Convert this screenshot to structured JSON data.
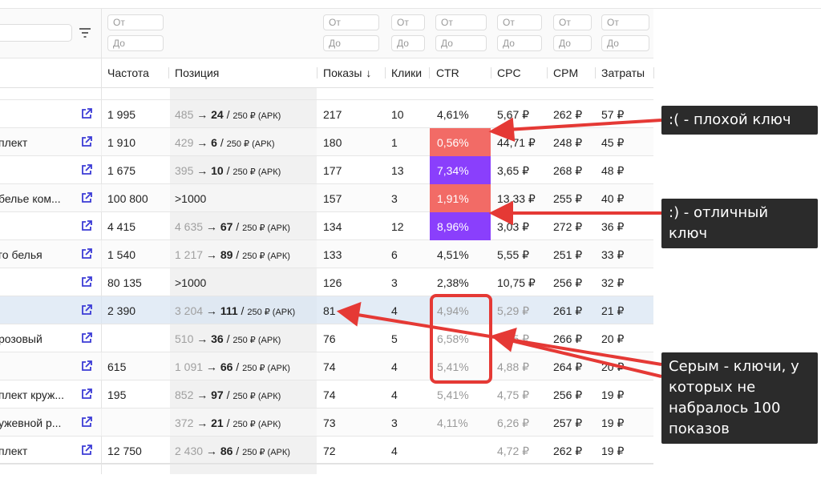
{
  "filters": {
    "from_placeholder": "От",
    "to_placeholder": "До"
  },
  "columns": [
    "Частота",
    "Позиция",
    "Показы",
    "Клики",
    "CTR",
    "CPC",
    "CPM",
    "Затраты"
  ],
  "sort_indicator": "↓",
  "colors": {
    "bad": "#f26b66",
    "good": "#8a3ffc",
    "link": "#3b3bd6",
    "annotation_red": "#e53935"
  },
  "rows": [
    {
      "kw": "",
      "freq": "1 995",
      "pos_old": "485",
      "pos_new": "24",
      "pos_bid": "250 ₽ (АРК)",
      "shows": "217",
      "clicks": "10",
      "ctr": "4,61%",
      "cpc": "5,67 ₽",
      "cpm": "262 ₽",
      "cost": "57 ₽",
      "ctr_flag": "",
      "gray": false
    },
    {
      "kw": "плект",
      "freq": "1 910",
      "pos_old": "429",
      "pos_new": "6",
      "pos_bid": "250 ₽ (АРК)",
      "shows": "180",
      "clicks": "1",
      "ctr": "0,56%",
      "cpc": "44,71 ₽",
      "cpm": "248 ₽",
      "cost": "45 ₽",
      "ctr_flag": "bad",
      "gray": false
    },
    {
      "kw": "",
      "freq": "1 675",
      "pos_old": "395",
      "pos_new": "10",
      "pos_bid": "250 ₽ (АРК)",
      "shows": "177",
      "clicks": "13",
      "ctr": "7,34%",
      "cpc": "3,65 ₽",
      "cpm": "268 ₽",
      "cost": "48 ₽",
      "ctr_flag": "good",
      "gray": false
    },
    {
      "kw": " белье ком...",
      "freq": "100 800",
      "pos_text": ">1000",
      "shows": "157",
      "clicks": "3",
      "ctr": "1,91%",
      "cpc": "13,33 ₽",
      "cpm": "255 ₽",
      "cost": "40 ₽",
      "ctr_flag": "bad",
      "gray": false
    },
    {
      "kw": "",
      "freq": "4 415",
      "pos_old": "4 635",
      "pos_new": "67",
      "pos_bid": "250 ₽ (АРК)",
      "shows": "134",
      "clicks": "12",
      "ctr": "8,96%",
      "cpc": "3,03 ₽",
      "cpm": "272 ₽",
      "cost": "36 ₽",
      "ctr_flag": "good",
      "gray": false
    },
    {
      "kw": "го белья",
      "freq": "1 540",
      "pos_old": "1 217",
      "pos_new": "89",
      "pos_bid": "250 ₽ (АРК)",
      "shows": "133",
      "clicks": "6",
      "ctr": "4,51%",
      "cpc": "5,55 ₽",
      "cpm": "251 ₽",
      "cost": "33 ₽",
      "ctr_flag": "",
      "gray": false
    },
    {
      "kw": "",
      "freq": "80 135",
      "pos_text": ">1000",
      "shows": "126",
      "clicks": "3",
      "ctr": "2,38%",
      "cpc": "10,75 ₽",
      "cpm": "256 ₽",
      "cost": "32 ₽",
      "ctr_flag": "",
      "gray": false
    },
    {
      "kw": "",
      "freq": "2 390",
      "pos_old": "3 204",
      "pos_new": "111",
      "pos_bid": "250 ₽ (АРК)",
      "shows": "81",
      "clicks": "4",
      "ctr": "4,94%",
      "cpc": "5,29 ₽",
      "cpm": "261 ₽",
      "cost": "21 ₽",
      "ctr_flag": "",
      "gray": true,
      "selected": true
    },
    {
      "kw": "розовый",
      "freq": "",
      "pos_old": "510",
      "pos_new": "36",
      "pos_bid": "250 ₽ (АРК)",
      "shows": "76",
      "clicks": "5",
      "ctr": "6,58%",
      "cpc": "4,05 ₽",
      "cpm": "266 ₽",
      "cost": "20 ₽",
      "ctr_flag": "",
      "gray": true
    },
    {
      "kw": "",
      "freq": "615",
      "pos_old": "1 091",
      "pos_new": "66",
      "pos_bid": "250 ₽ (АРК)",
      "shows": "74",
      "clicks": "4",
      "ctr": "5,41%",
      "cpc": "4,88 ₽",
      "cpm": "264 ₽",
      "cost": "20 ₽",
      "ctr_flag": "",
      "gray": true
    },
    {
      "kw": "плект круж...",
      "freq": "195",
      "pos_old": "852",
      "pos_new": "97",
      "pos_bid": "250 ₽ (АРК)",
      "shows": "74",
      "clicks": "4",
      "ctr": "5,41%",
      "cpc": "4,75 ₽",
      "cpm": "256 ₽",
      "cost": "19 ₽",
      "ctr_flag": "",
      "gray": true
    },
    {
      "kw": "ужевной р...",
      "freq": "",
      "pos_old": "372",
      "pos_new": "21",
      "pos_bid": "250 ₽ (АРК)",
      "shows": "73",
      "clicks": "3",
      "ctr": "4,11%",
      "cpc": "6,26 ₽",
      "cpm": "257 ₽",
      "cost": "19 ₽",
      "ctr_flag": "",
      "gray": true
    },
    {
      "kw": "плект",
      "freq": "12 750",
      "pos_old": "2 430",
      "pos_new": "86",
      "pos_bid": "250 ₽ (АРК)",
      "shows": "72",
      "clicks": "4",
      "ctr": "",
      "cpc": "4,72 ₽",
      "cpm": "262 ₽",
      "cost": "19 ₽",
      "ctr_flag": "",
      "gray": true
    }
  ],
  "annotations": {
    "bad_key": ":( - плохой ключ",
    "good_key": ":) - отличный ключ",
    "gray_note": "Серым - ключи, у которых не набралось 100 показов"
  }
}
